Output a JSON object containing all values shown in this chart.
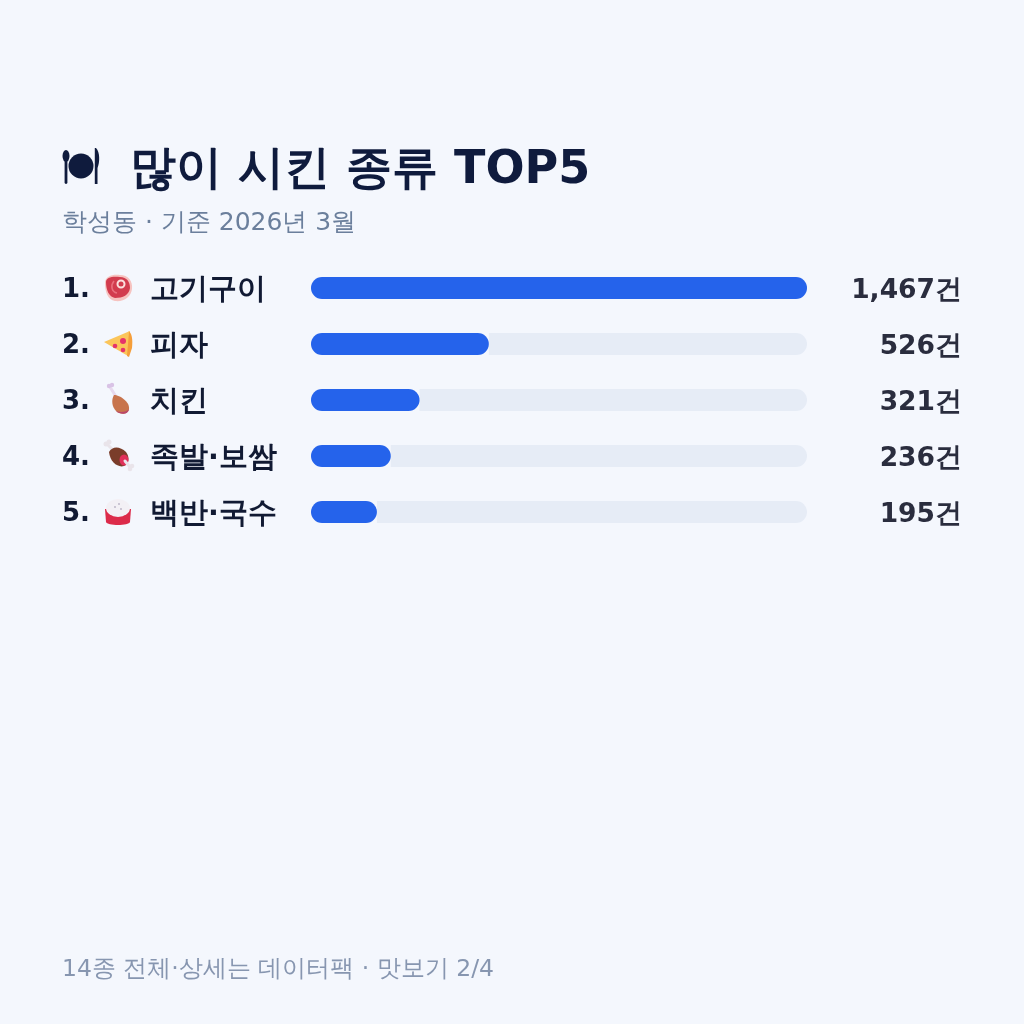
{
  "chart_data": {
    "type": "bar",
    "orientation": "horizontal",
    "title": "많이 시킨 종류 TOP5",
    "subtitle": "학성동 · 기준 2026년 3월",
    "categories": [
      "고기구이",
      "피자",
      "치킨",
      "족발·보쌈",
      "백반·국수"
    ],
    "values": [
      1467,
      526,
      321,
      236,
      195
    ],
    "value_labels": [
      "1,467건",
      "526건",
      "321건",
      "236건",
      "195건"
    ],
    "color": "#2563eb",
    "xlim": [
      0,
      1467
    ],
    "tick_labels": "y",
    "annotations": [
      "1.",
      "2.",
      "3.",
      "4.",
      "5.",
      "14종 전체·상세는 데이터팩 · 맛보기 2/4"
    ]
  }
}
